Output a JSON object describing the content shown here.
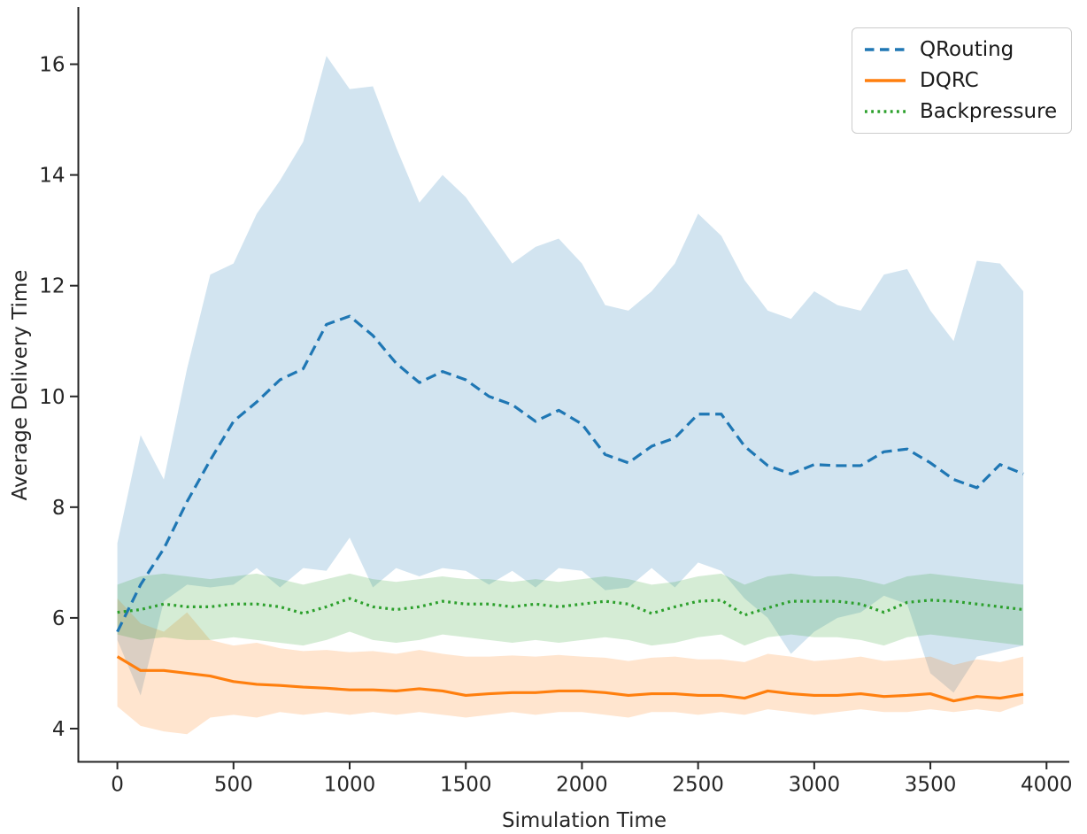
{
  "chart_data": {
    "type": "line",
    "title": "",
    "xlabel": "Simulation Time",
    "ylabel": "Average Delivery Time",
    "xlim": [
      -168,
      4098
    ],
    "ylim": [
      3.4,
      17.0
    ],
    "xticks": [
      0,
      500,
      1000,
      1500,
      2000,
      2500,
      3000,
      3500,
      4000
    ],
    "yticks": [
      4,
      6,
      8,
      10,
      12,
      14,
      16
    ],
    "grid": false,
    "legend_position": "upper right",
    "band_alpha": 0.2,
    "axis_color": "#262626",
    "x": [
      0,
      100,
      200,
      300,
      400,
      500,
      600,
      700,
      800,
      900,
      1000,
      1100,
      1200,
      1300,
      1400,
      1500,
      1600,
      1700,
      1800,
      1900,
      2000,
      2100,
      2200,
      2300,
      2400,
      2500,
      2600,
      2700,
      2800,
      2900,
      3000,
      3100,
      3200,
      3300,
      3400,
      3500,
      3600,
      3700,
      3800,
      3900
    ],
    "series": [
      {
        "name": "QRouting",
        "color": "#1f77b4",
        "style": "dashed",
        "values": [
          5.75,
          6.6,
          7.25,
          8.1,
          8.85,
          9.55,
          9.9,
          10.3,
          10.5,
          11.3,
          11.45,
          11.1,
          10.6,
          10.25,
          10.45,
          10.3,
          10.0,
          9.85,
          9.55,
          9.75,
          9.5,
          8.95,
          8.8,
          9.1,
          9.25,
          9.68,
          9.68,
          9.1,
          8.75,
          8.6,
          8.77,
          8.75,
          8.75,
          9.0,
          9.05,
          8.8,
          8.5,
          8.35,
          8.77,
          8.6
        ],
        "band_upper": [
          7.35,
          9.3,
          8.5,
          10.5,
          12.2,
          12.4,
          13.3,
          13.9,
          14.6,
          16.15,
          15.55,
          15.6,
          14.5,
          13.5,
          14.0,
          13.6,
          13.0,
          12.4,
          12.7,
          12.85,
          12.4,
          11.65,
          11.55,
          11.9,
          12.4,
          13.3,
          12.9,
          12.1,
          11.55,
          11.4,
          11.9,
          11.65,
          11.55,
          12.2,
          12.3,
          11.55,
          11.0,
          12.45,
          12.4,
          11.9
        ],
        "band_lower": [
          5.6,
          4.6,
          6.3,
          6.6,
          6.55,
          6.6,
          6.9,
          6.55,
          6.9,
          6.85,
          7.45,
          6.55,
          6.9,
          6.75,
          6.9,
          6.85,
          6.6,
          6.85,
          6.55,
          6.9,
          6.85,
          6.5,
          6.55,
          6.9,
          6.55,
          7.0,
          6.85,
          6.35,
          6.0,
          5.35,
          5.75,
          6.0,
          6.1,
          6.4,
          6.25,
          5.0,
          4.65,
          5.3,
          5.4,
          5.5
        ]
      },
      {
        "name": "DQRC",
        "color": "#ff7f0e",
        "style": "solid",
        "values": [
          5.3,
          5.05,
          5.05,
          5.0,
          4.95,
          4.85,
          4.8,
          4.78,
          4.75,
          4.73,
          4.7,
          4.7,
          4.68,
          4.72,
          4.68,
          4.6,
          4.63,
          4.65,
          4.65,
          4.68,
          4.68,
          4.65,
          4.6,
          4.63,
          4.63,
          4.6,
          4.6,
          4.55,
          4.68,
          4.63,
          4.6,
          4.6,
          4.63,
          4.58,
          4.6,
          4.63,
          4.5,
          4.58,
          4.55,
          4.62
        ],
        "band_upper": [
          6.35,
          5.9,
          5.75,
          6.1,
          5.6,
          5.5,
          5.55,
          5.45,
          5.4,
          5.42,
          5.38,
          5.4,
          5.35,
          5.42,
          5.35,
          5.3,
          5.3,
          5.32,
          5.3,
          5.33,
          5.3,
          5.28,
          5.22,
          5.28,
          5.3,
          5.25,
          5.25,
          5.2,
          5.35,
          5.3,
          5.22,
          5.25,
          5.3,
          5.22,
          5.25,
          5.3,
          5.15,
          5.25,
          5.2,
          5.3
        ],
        "band_lower": [
          4.4,
          4.05,
          3.95,
          3.9,
          4.2,
          4.25,
          4.2,
          4.3,
          4.25,
          4.3,
          4.25,
          4.3,
          4.25,
          4.3,
          4.25,
          4.2,
          4.25,
          4.3,
          4.25,
          4.3,
          4.3,
          4.25,
          4.2,
          4.3,
          4.3,
          4.25,
          4.3,
          4.25,
          4.35,
          4.3,
          4.25,
          4.3,
          4.35,
          4.3,
          4.3,
          4.35,
          4.3,
          4.35,
          4.3,
          4.45
        ]
      },
      {
        "name": "Backpressure",
        "color": "#2ca02c",
        "style": "dotted",
        "values": [
          6.1,
          6.15,
          6.25,
          6.2,
          6.2,
          6.25,
          6.25,
          6.2,
          6.08,
          6.2,
          6.35,
          6.2,
          6.15,
          6.2,
          6.3,
          6.25,
          6.25,
          6.2,
          6.25,
          6.2,
          6.25,
          6.3,
          6.25,
          6.08,
          6.2,
          6.3,
          6.32,
          6.05,
          6.18,
          6.3,
          6.3,
          6.3,
          6.25,
          6.1,
          6.28,
          6.32,
          6.3,
          6.25,
          6.2,
          6.15
        ],
        "band_upper": [
          6.6,
          6.75,
          6.8,
          6.75,
          6.7,
          6.75,
          6.8,
          6.7,
          6.6,
          6.7,
          6.8,
          6.7,
          6.65,
          6.7,
          6.75,
          6.7,
          6.7,
          6.65,
          6.7,
          6.65,
          6.7,
          6.75,
          6.7,
          6.6,
          6.65,
          6.75,
          6.8,
          6.6,
          6.75,
          6.8,
          6.75,
          6.75,
          6.7,
          6.6,
          6.75,
          6.8,
          6.75,
          6.7,
          6.65,
          6.6
        ],
        "band_lower": [
          5.7,
          5.6,
          5.65,
          5.6,
          5.6,
          5.65,
          5.6,
          5.55,
          5.5,
          5.6,
          5.75,
          5.6,
          5.55,
          5.6,
          5.7,
          5.65,
          5.6,
          5.55,
          5.6,
          5.55,
          5.6,
          5.65,
          5.6,
          5.5,
          5.55,
          5.65,
          5.7,
          5.5,
          5.65,
          5.7,
          5.65,
          5.65,
          5.6,
          5.5,
          5.65,
          5.7,
          5.65,
          5.6,
          5.55,
          5.5
        ]
      }
    ]
  }
}
